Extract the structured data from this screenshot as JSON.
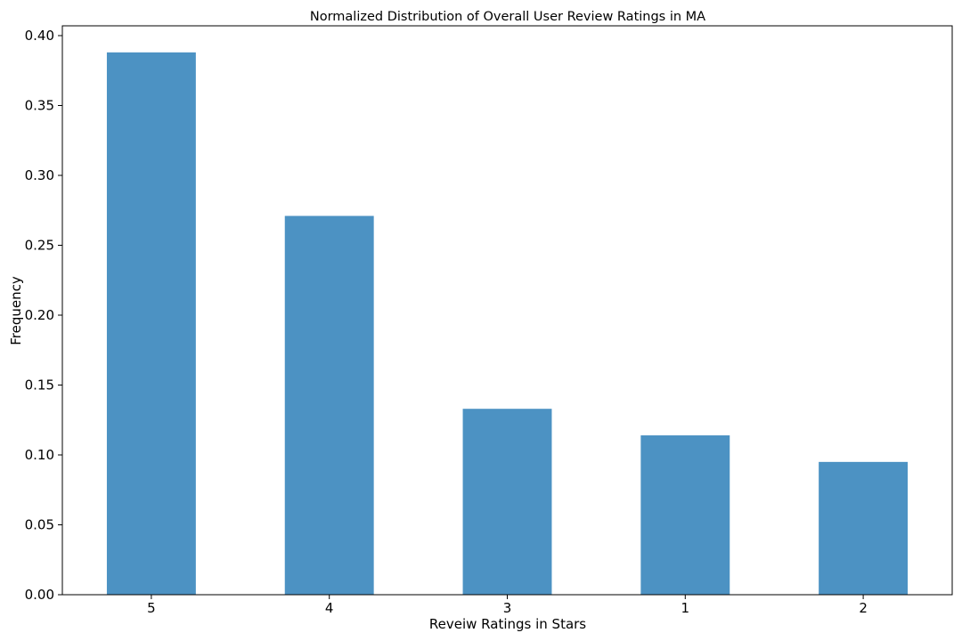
{
  "chart_data": {
    "type": "bar",
    "title": "Normalized Distribution of Overall User Review Ratings in MA",
    "xlabel": "Reveiw Ratings in Stars",
    "ylabel": "Frequency",
    "categories": [
      "5",
      "4",
      "3",
      "1",
      "2"
    ],
    "values": [
      0.388,
      0.271,
      0.133,
      0.114,
      0.095
    ],
    "ylim": [
      0,
      0.407
    ],
    "yticks": [
      0.0,
      0.05,
      0.1,
      0.15,
      0.2,
      0.25,
      0.3,
      0.35,
      0.4
    ],
    "ytick_labels": [
      "0.00",
      "0.05",
      "0.10",
      "0.15",
      "0.20",
      "0.25",
      "0.30",
      "0.35",
      "0.40"
    ],
    "grid": false,
    "legend": "none",
    "bar_color": "#4c92c3"
  }
}
